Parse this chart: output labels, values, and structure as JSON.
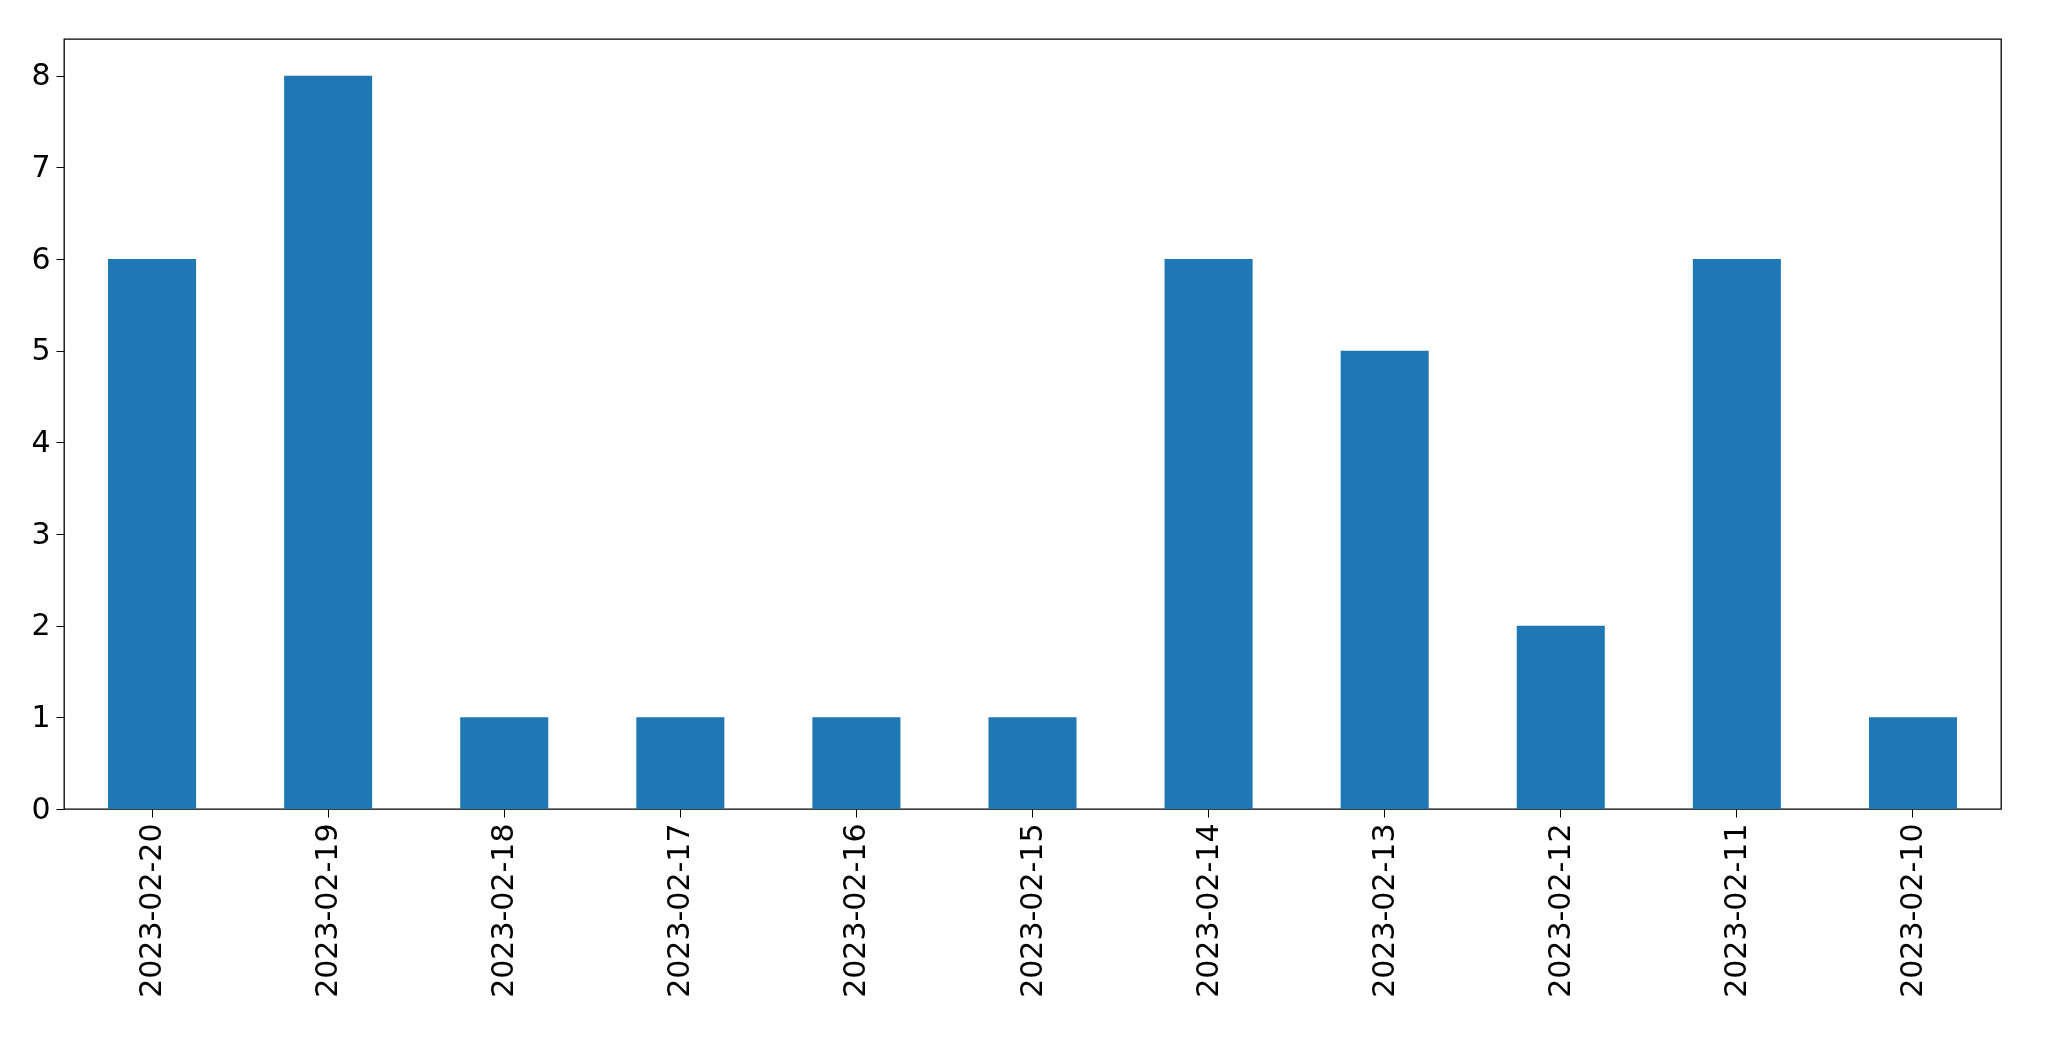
{
  "chart_data": {
    "type": "bar",
    "categories": [
      "2023-02-20",
      "2023-02-19",
      "2023-02-18",
      "2023-02-17",
      "2023-02-16",
      "2023-02-15",
      "2023-02-14",
      "2023-02-13",
      "2023-02-12",
      "2023-02-11",
      "2023-02-10"
    ],
    "values": [
      6,
      8,
      1,
      1,
      1,
      1,
      6,
      5,
      2,
      6,
      1
    ],
    "color": "#1f77b4",
    "ylim": [
      0,
      8.4
    ],
    "yticks": [
      0,
      1,
      2,
      3,
      4,
      5,
      6,
      7,
      8
    ],
    "grid": false
  }
}
